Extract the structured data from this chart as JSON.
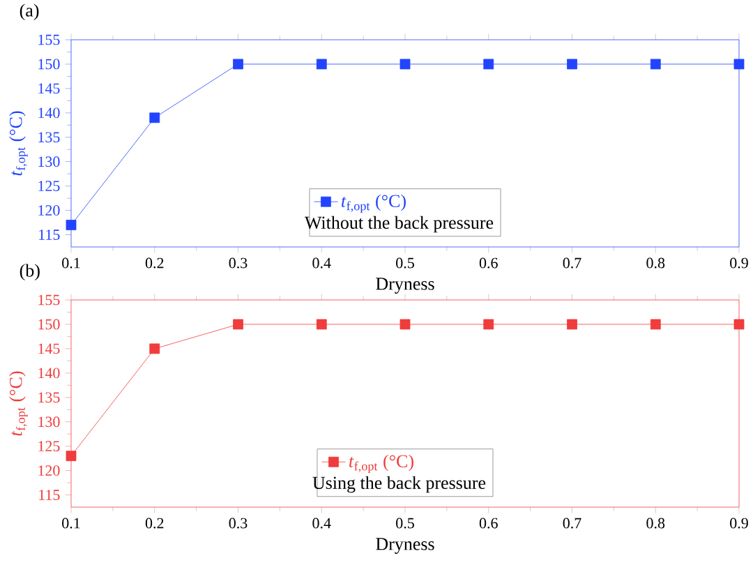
{
  "chart_data": [
    {
      "type": "line",
      "title": "(a)",
      "xlabel": "Dryness",
      "ylabel": "*t*$_{f,opt}$ (°C)",
      "x": [
        0.1,
        0.2,
        0.3,
        0.4,
        0.5,
        0.6,
        0.7,
        0.8,
        0.9
      ],
      "series": [
        {
          "name": "*t*$_{f,opt}$ (°C)",
          "color": "#2244ff",
          "values": [
            117,
            139,
            150,
            150,
            150,
            150,
            150,
            150,
            150
          ]
        }
      ],
      "annotations": [
        "Without the back pressure"
      ],
      "xlim": [
        0.1,
        0.9
      ],
      "xticks": [
        0.1,
        0.2,
        0.3,
        0.4,
        0.5,
        0.6,
        0.7,
        0.8,
        0.9
      ],
      "ylim": [
        112.5,
        155
      ],
      "yticks": [
        115,
        120,
        125,
        130,
        135,
        140,
        145,
        150,
        155
      ],
      "marker": "square",
      "line_style": "solid",
      "legend": "bottom",
      "grid": false
    },
    {
      "type": "line",
      "title": "(b)",
      "xlabel": "Dryness",
      "ylabel": "*t*$_{f,opt}$ (°C)",
      "x": [
        0.1,
        0.2,
        0.3,
        0.4,
        0.5,
        0.6,
        0.7,
        0.8,
        0.9
      ],
      "series": [
        {
          "name": "*t*$_{f,opt}$ (°C)",
          "color": "#f03c3c",
          "values": [
            123,
            145,
            150,
            150,
            150,
            150,
            150,
            150,
            150
          ]
        }
      ],
      "annotations": [
        "Using the back pressure"
      ],
      "xlim": [
        0.1,
        0.9
      ],
      "xticks": [
        0.1,
        0.2,
        0.3,
        0.4,
        0.5,
        0.6,
        0.7,
        0.8,
        0.9
      ],
      "ylim": [
        112.5,
        155
      ],
      "yticks": [
        115,
        120,
        125,
        130,
        135,
        140,
        145,
        150,
        155
      ],
      "marker": "square",
      "line_style": "solid",
      "legend": "bottom",
      "grid": false
    }
  ]
}
